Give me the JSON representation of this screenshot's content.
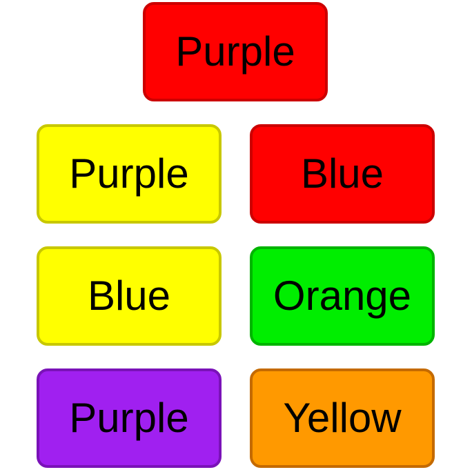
{
  "cards": [
    {
      "label": "Purple",
      "fill": "#ff0000",
      "border": "#cc0000"
    },
    {
      "label": "Purple",
      "fill": "#ffff00",
      "border": "#c8c800"
    },
    {
      "label": "Blue",
      "fill": "#ff0000",
      "border": "#cc0000"
    },
    {
      "label": "Blue",
      "fill": "#ffff00",
      "border": "#c8c800"
    },
    {
      "label": "Orange",
      "fill": "#00ee00",
      "border": "#00b400"
    },
    {
      "label": "Purple",
      "fill": "#a020f0",
      "border": "#7a12b8"
    },
    {
      "label": "Yellow",
      "fill": "#ff9900",
      "border": "#c46a00"
    }
  ]
}
